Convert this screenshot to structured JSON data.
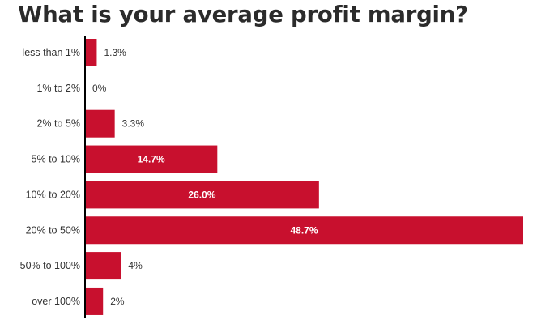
{
  "chart_data": {
    "type": "bar",
    "orientation": "horizontal",
    "title": "What is your average profit margin?",
    "categories": [
      "less than 1%",
      "1% to 2%",
      "2% to 5%",
      "5% to 10%",
      "10% to 20%",
      "20% to 50%",
      "50% to 100%",
      "over 100%"
    ],
    "values": [
      1.3,
      0,
      3.3,
      14.7,
      26.0,
      48.7,
      4,
      2
    ],
    "value_labels": [
      "1.3%",
      "0%",
      "3.3%",
      "14.7%",
      "26.0%",
      "48.7%",
      "4%",
      "2%"
    ],
    "xlabel": "",
    "ylabel": "",
    "xlim": [
      0,
      48.7
    ],
    "grid": false,
    "legend": "none",
    "bar_color": "#c8102e",
    "axis_color": "#000000",
    "label_inside_color": "#ffffff",
    "label_outside_color": "#333333"
  }
}
